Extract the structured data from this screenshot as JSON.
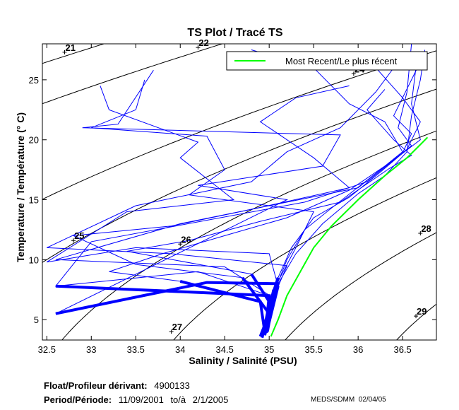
{
  "chart_data": {
    "type": "line",
    "title": "TS Plot / Tracé TS",
    "xlabel": "Salinity / Salinité (PSU)",
    "ylabel": "Temperature / Température (° C)",
    "xlim": [
      32.45,
      36.88
    ],
    "ylim": [
      3.3,
      28.0
    ],
    "xticks": [
      32.5,
      33,
      33.5,
      34,
      34.5,
      35,
      35.5,
      36,
      36.5
    ],
    "yticks": [
      5,
      10,
      15,
      20,
      25
    ],
    "grid": false,
    "legend": {
      "placement": "top-right",
      "entries": [
        {
          "label": "Most Recent/Le plus récent",
          "color": "#00ff00"
        }
      ]
    },
    "profile_color": "#0000ff",
    "recent_color": "#00ff00",
    "contour_color": "#000000",
    "density_contours": [
      {
        "value": 21,
        "label_at": [
          32.7,
          27.3
        ]
      },
      {
        "value": 22,
        "label_at": [
          34.2,
          27.7
        ]
      },
      {
        "value": 24,
        "label_at": [
          35.95,
          25.5
        ]
      },
      {
        "value": 25,
        "label_at": [
          32.8,
          11.6
        ]
      },
      {
        "value": 26,
        "label_at": [
          34.0,
          11.3
        ]
      },
      {
        "value": 27,
        "label_at": [
          33.9,
          4.0
        ]
      },
      {
        "value": 28,
        "label_at": [
          36.7,
          12.2
        ]
      },
      {
        "value": 29,
        "label_at": [
          36.65,
          5.3
        ]
      }
    ],
    "profiles": [
      [
        [
          36.75,
          27.5
        ],
        [
          36.7,
          25
        ],
        [
          36.6,
          22
        ],
        [
          36.55,
          19
        ],
        [
          36.3,
          17
        ],
        [
          36.0,
          15.5
        ],
        [
          35.6,
          13
        ],
        [
          35.3,
          10.5
        ],
        [
          35.1,
          8
        ],
        [
          35.0,
          6
        ],
        [
          34.95,
          4.5
        ],
        [
          34.92,
          3.5
        ]
      ],
      [
        [
          36.65,
          26
        ],
        [
          36.6,
          23
        ],
        [
          36.7,
          20
        ],
        [
          36.4,
          18.3
        ],
        [
          35.9,
          15.8
        ],
        [
          35.2,
          13.5
        ],
        [
          34.5,
          12
        ],
        [
          33.8,
          10.5
        ],
        [
          33.2,
          9
        ],
        [
          34.0,
          8.2
        ],
        [
          34.9,
          6.5
        ],
        [
          34.95,
          4
        ]
      ],
      [
        [
          33.6,
          25
        ],
        [
          33.5,
          22.5
        ],
        [
          33.0,
          21
        ],
        [
          34.3,
          20.3
        ],
        [
          34.5,
          17.5
        ],
        [
          34.1,
          15.4
        ],
        [
          35.5,
          14
        ],
        [
          35.3,
          11
        ],
        [
          35.05,
          7.5
        ],
        [
          34.95,
          4
        ]
      ],
      [
        [
          36.5,
          27
        ],
        [
          36.2,
          24
        ],
        [
          35.8,
          21
        ],
        [
          35.2,
          19
        ],
        [
          34.8,
          16.5
        ],
        [
          33.5,
          14.5
        ],
        [
          32.5,
          11
        ],
        [
          33.9,
          10.5
        ],
        [
          35.2,
          9.5
        ],
        [
          35.0,
          6
        ],
        [
          34.93,
          3.8
        ]
      ],
      [
        [
          35.9,
          24.5
        ],
        [
          35.3,
          23.5
        ],
        [
          34.9,
          21.5
        ],
        [
          35.5,
          18.5
        ],
        [
          35.9,
          16
        ],
        [
          34.8,
          14.2
        ],
        [
          33.9,
          12.8
        ],
        [
          32.8,
          12
        ],
        [
          33.5,
          9.6
        ],
        [
          34.7,
          8.5
        ],
        [
          35.0,
          5.5
        ],
        [
          34.9,
          3.6
        ]
      ],
      [
        [
          36.6,
          28
        ],
        [
          36.55,
          24
        ],
        [
          36.45,
          21
        ],
        [
          36.6,
          19.5
        ],
        [
          36.1,
          16.5
        ],
        [
          35.4,
          14.8
        ],
        [
          33.0,
          11.5
        ],
        [
          32.6,
          7.8
        ],
        [
          34.2,
          9
        ],
        [
          35.0,
          7
        ],
        [
          34.96,
          4.2
        ]
      ],
      [
        [
          34.8,
          27.5
        ],
        [
          35.5,
          26
        ],
        [
          35.9,
          23
        ],
        [
          36.3,
          21.5
        ],
        [
          36.5,
          19
        ],
        [
          36.0,
          16
        ],
        [
          35.0,
          14.5
        ],
        [
          34.0,
          13
        ],
        [
          32.6,
          10
        ],
        [
          34.5,
          9.4
        ],
        [
          35.05,
          6.8
        ],
        [
          34.98,
          4
        ]
      ],
      [
        [
          33.7,
          25.8
        ],
        [
          33.3,
          21.3
        ],
        [
          32.9,
          21
        ],
        [
          35.8,
          20.4
        ],
        [
          35.6,
          17.8
        ],
        [
          34.2,
          16.2
        ],
        [
          35.2,
          15
        ],
        [
          34.6,
          12.8
        ],
        [
          32.6,
          5.5
        ],
        [
          34.3,
          8.1
        ],
        [
          35.1,
          8
        ],
        [
          34.95,
          3.7
        ]
      ],
      [
        [
          36.7,
          26.5
        ],
        [
          36.4,
          22
        ],
        [
          36.6,
          20.5
        ],
        [
          36.5,
          18.9
        ],
        [
          36.2,
          17.2
        ],
        [
          35.7,
          14.3
        ],
        [
          35.4,
          12.5
        ],
        [
          35.2,
          10
        ],
        [
          35.05,
          7.2
        ],
        [
          34.98,
          5
        ],
        [
          34.92,
          3.5
        ]
      ],
      [
        [
          36.2,
          26
        ],
        [
          36.5,
          23.5
        ],
        [
          36.7,
          21.5
        ],
        [
          36.55,
          19.2
        ],
        [
          36.25,
          17.3
        ],
        [
          35.9,
          15.2
        ],
        [
          35.5,
          13.5
        ],
        [
          35.25,
          11
        ],
        [
          35.1,
          8.5
        ],
        [
          35.0,
          6.2
        ],
        [
          34.95,
          4.5
        ]
      ],
      [
        [
          33.1,
          24.5
        ],
        [
          33.2,
          22.5
        ],
        [
          34.2,
          19.8
        ],
        [
          34.0,
          18.5
        ],
        [
          34.6,
          15
        ],
        [
          33.4,
          14
        ],
        [
          32.5,
          9.8
        ],
        [
          33.5,
          11
        ],
        [
          35.0,
          10.5
        ],
        [
          35.1,
          7.8
        ],
        [
          35.0,
          4.8
        ]
      ],
      [
        [
          36.3,
          24.2
        ],
        [
          36.1,
          22.5
        ],
        [
          36.4,
          20
        ],
        [
          36.6,
          18.7
        ],
        [
          36.35,
          17.6
        ],
        [
          35.8,
          14.8
        ],
        [
          34.9,
          13.2
        ],
        [
          34.1,
          11.6
        ],
        [
          33.4,
          10.7
        ],
        [
          34.8,
          8.8
        ],
        [
          35.0,
          6.5
        ],
        [
          34.97,
          3.9
        ]
      ]
    ],
    "most_recent": [
      [
        36.78,
        20.2
      ],
      [
        36.7,
        19.6
      ],
      [
        36.55,
        18.5
      ],
      [
        36.3,
        17
      ],
      [
        36.0,
        15
      ],
      [
        35.7,
        12.8
      ],
      [
        35.5,
        11
      ],
      [
        35.35,
        9
      ],
      [
        35.2,
        7
      ],
      [
        35.1,
        5
      ],
      [
        35.02,
        3.6
      ]
    ]
  },
  "footer": {
    "float_label": "Float/Profileur dérivant:",
    "float_id": "4900133",
    "period_label": "Period/Période:",
    "period_start": "11/09/2001",
    "period_sep": "to/à",
    "period_end": "2/1/2005",
    "credit": "MEDS/SDMM  02/04/05"
  }
}
